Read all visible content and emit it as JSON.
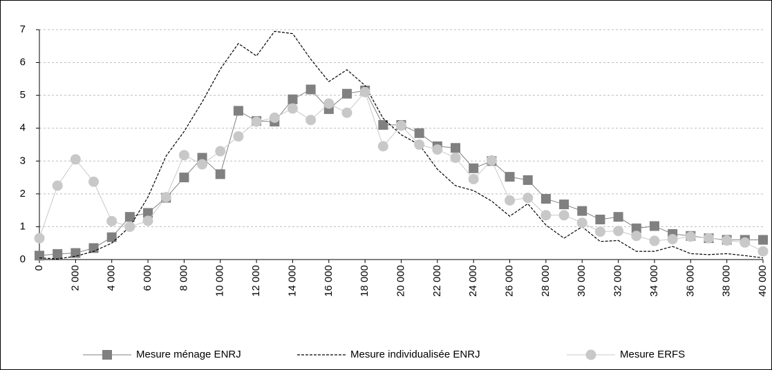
{
  "chart_data": {
    "type": "line",
    "x": [
      0,
      1000,
      2000,
      3000,
      4000,
      5000,
      6000,
      7000,
      8000,
      9000,
      10000,
      11000,
      12000,
      13000,
      14000,
      15000,
      16000,
      17000,
      18000,
      19000,
      20000,
      21000,
      22000,
      23000,
      24000,
      25000,
      26000,
      27000,
      28000,
      29000,
      30000,
      31000,
      32000,
      33000,
      34000,
      35000,
      36000,
      37000,
      38000,
      39000,
      40000
    ],
    "series": [
      {
        "name": "Mesure ménage ENRJ",
        "color": "#808080",
        "marker": "square",
        "dashed": false,
        "values": [
          0.12,
          0.17,
          0.2,
          0.35,
          0.68,
          1.3,
          1.42,
          1.88,
          2.5,
          3.1,
          2.6,
          4.53,
          4.22,
          4.2,
          4.88,
          5.18,
          4.58,
          5.05,
          5.15,
          4.1,
          4.1,
          3.85,
          3.45,
          3.4,
          2.78,
          3.0,
          2.52,
          2.42,
          1.85,
          1.68,
          1.48,
          1.22,
          1.3,
          0.95,
          1.02,
          0.78,
          0.72,
          0.65,
          0.6,
          0.6,
          0.6
        ]
      },
      {
        "name": "Mesure individualisée ENRJ",
        "color": "#000000",
        "marker": "none",
        "dashed": true,
        "values": [
          0.05,
          0.02,
          0.1,
          0.25,
          0.5,
          1.0,
          1.9,
          3.15,
          3.9,
          4.8,
          5.8,
          6.58,
          6.2,
          6.95,
          6.88,
          6.1,
          5.42,
          5.78,
          5.3,
          4.3,
          3.8,
          3.5,
          2.75,
          2.25,
          2.1,
          1.78,
          1.32,
          1.7,
          1.05,
          0.65,
          1.0,
          0.55,
          0.58,
          0.25,
          0.25,
          0.4,
          0.18,
          0.15,
          0.18,
          0.12,
          0.05
        ]
      },
      {
        "name": "Mesure ERFS",
        "color": "#c8c8c8",
        "marker": "circle",
        "dashed": false,
        "values": [
          0.65,
          2.25,
          3.05,
          2.37,
          1.17,
          1.0,
          1.18,
          1.9,
          3.18,
          2.9,
          3.3,
          3.75,
          4.2,
          4.32,
          4.6,
          4.25,
          4.75,
          4.47,
          5.1,
          3.45,
          4.08,
          3.5,
          3.35,
          3.1,
          2.45,
          3.02,
          1.8,
          1.88,
          1.35,
          1.35,
          1.12,
          0.85,
          0.87,
          0.72,
          0.57,
          0.62,
          0.7,
          0.65,
          0.58,
          0.52,
          0.25
        ]
      }
    ],
    "xlim": [
      0,
      40000
    ],
    "xticks": [
      0,
      {
        "value": 2000,
        "label": "2 000"
      },
      {
        "value": 4000,
        "label": "4 000"
      },
      {
        "value": 6000,
        "label": "6 000"
      },
      {
        "value": 8000,
        "label": "8 000"
      },
      {
        "value": 10000,
        "label": "10 000"
      },
      {
        "value": 12000,
        "label": "12 000"
      },
      {
        "value": 14000,
        "label": "14 000"
      },
      {
        "value": 16000,
        "label": "16 000"
      },
      {
        "value": 18000,
        "label": "18 000"
      },
      {
        "value": 20000,
        "label": "20 000"
      },
      {
        "value": 22000,
        "label": "22 000"
      },
      {
        "value": 24000,
        "label": "24 000"
      },
      {
        "value": 26000,
        "label": "26 000"
      },
      {
        "value": 28000,
        "label": "28 000"
      },
      {
        "value": 30000,
        "label": "30 000"
      },
      {
        "value": 32000,
        "label": "32 000"
      },
      {
        "value": 34000,
        "label": "34 000"
      },
      {
        "value": 36000,
        "label": "36 000"
      },
      {
        "value": 38000,
        "label": "38 000"
      },
      {
        "value": 40000,
        "label": "40 000"
      }
    ],
    "ylim": [
      0,
      7
    ],
    "yticks": [
      0,
      1,
      2,
      3,
      4,
      5,
      6,
      7
    ],
    "grid": true,
    "legend": "bottom"
  }
}
